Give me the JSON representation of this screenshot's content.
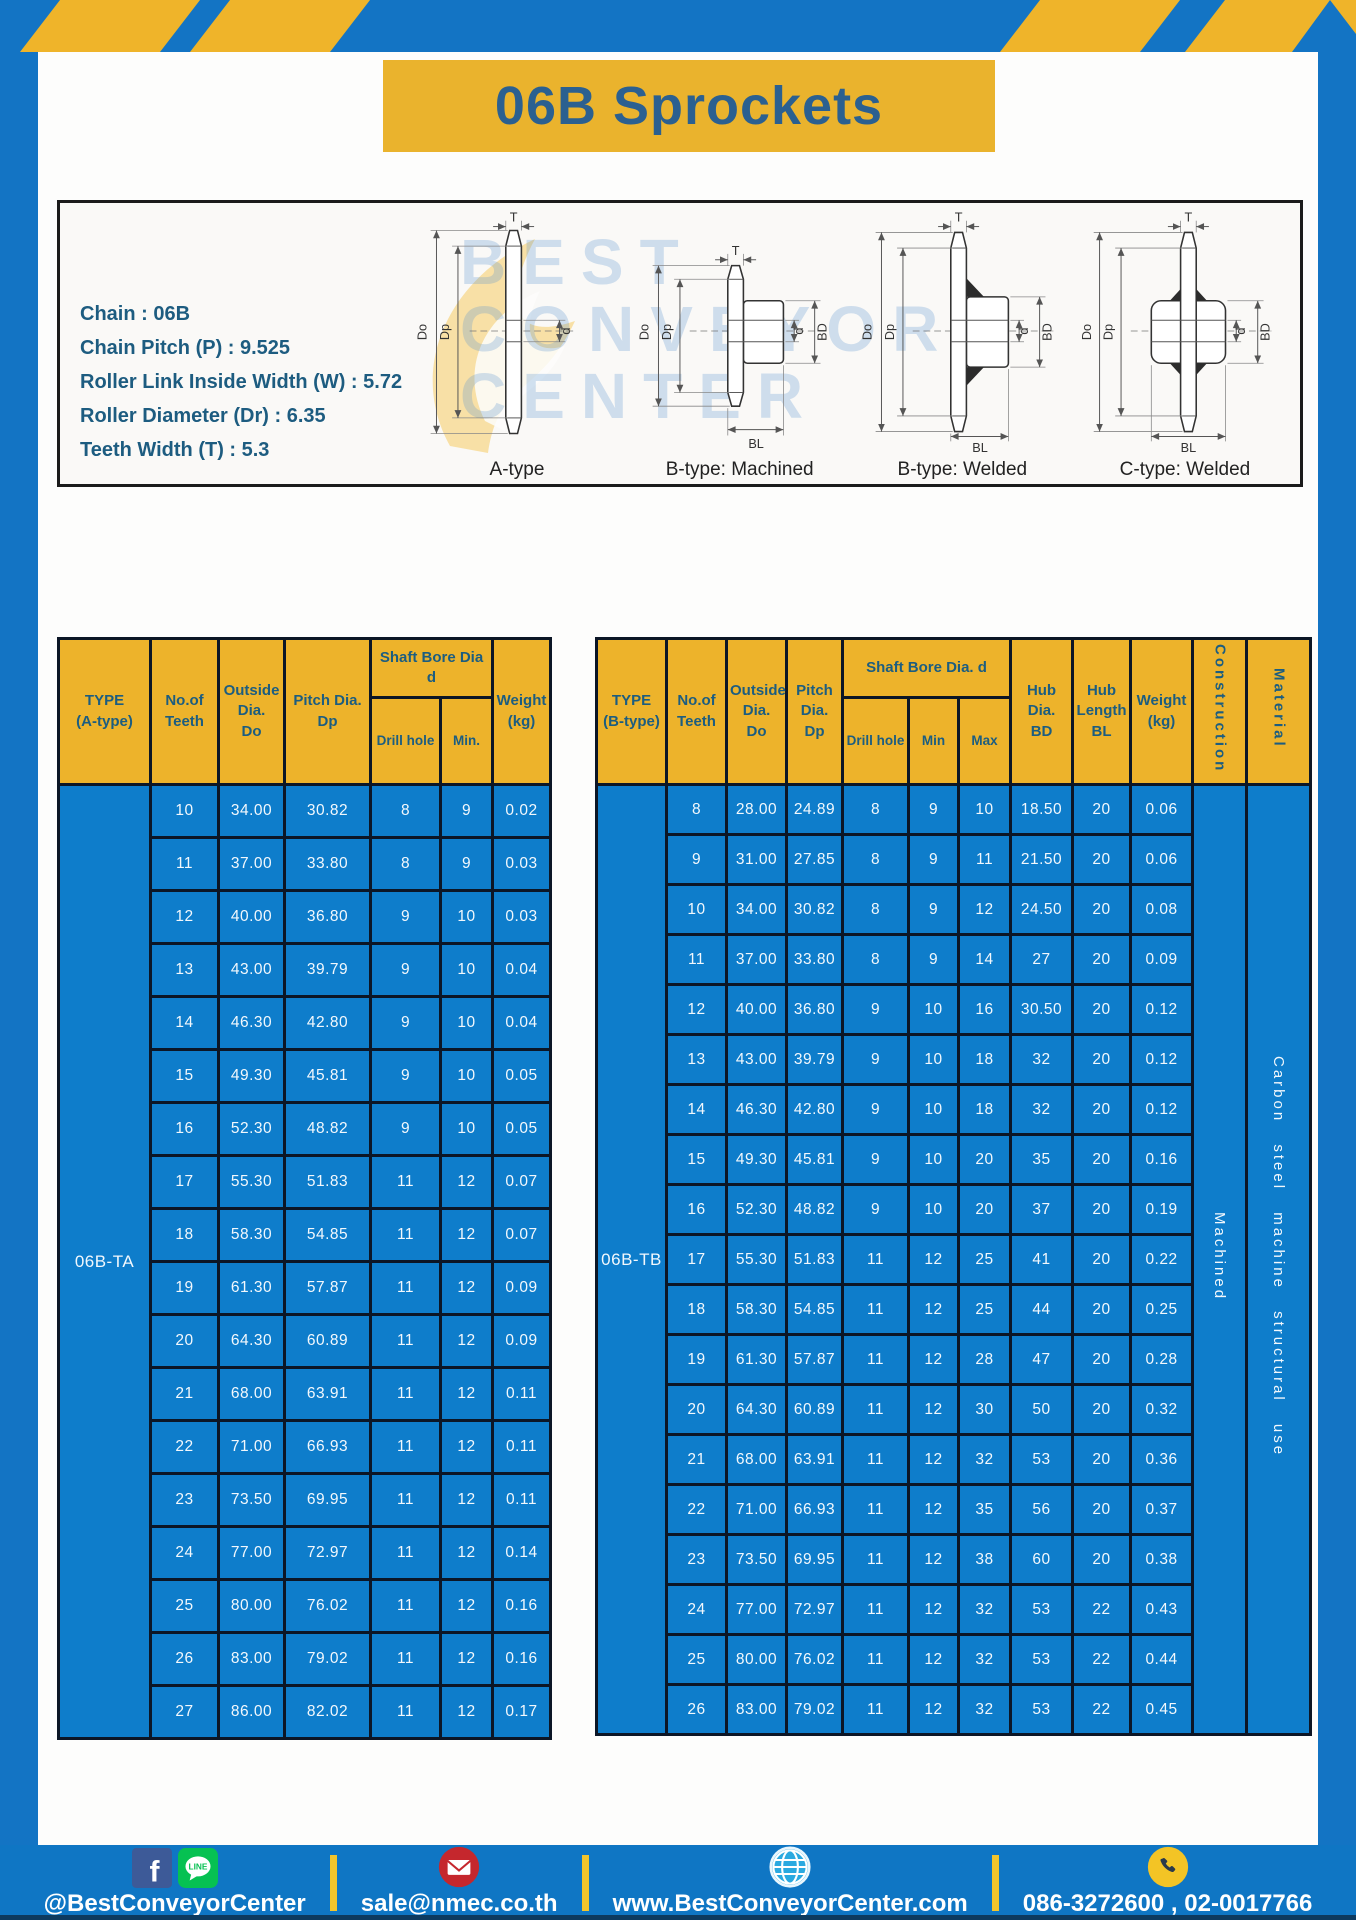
{
  "page": {
    "title": "06B Sprockets"
  },
  "specs": {
    "lines": [
      "Chain  : 06B",
      "Chain Pitch (P)  :  9.525",
      "Roller Link Inside Width (W)  :  5.72",
      "Roller Diameter (Dr)  : 6.35",
      "Teeth Width (T)  :  5.3"
    ]
  },
  "watermark": {
    "lines": [
      "BEST",
      "CONVEYOR",
      "CENTER"
    ]
  },
  "diagrams": {
    "captions": [
      "A-type",
      "B-type: Machined",
      "B-type: Welded",
      "C-type: Welded"
    ],
    "dim_labels": {
      "t": "T",
      "do": "Do",
      "dp": "Dp",
      "d": "d",
      "bd": "BD",
      "bl": "BL"
    }
  },
  "table_a": {
    "headers": {
      "type": "TYPE\n(A-type)",
      "teeth": "No.of\nTeeth",
      "outside": "Outside\nDia.\nDo",
      "pitch": "Pitch Dia.\nDp",
      "shaft_bore": "Shaft Bore Dia d",
      "drill": "Drill hole",
      "min": "Min.",
      "weight": "Weight\n(kg)"
    },
    "type_label": "06B-TA",
    "rows": [
      [
        "10",
        "34.00",
        "30.82",
        "8",
        "9",
        "0.02"
      ],
      [
        "11",
        "37.00",
        "33.80",
        "8",
        "9",
        "0.03"
      ],
      [
        "12",
        "40.00",
        "36.80",
        "9",
        "10",
        "0.03"
      ],
      [
        "13",
        "43.00",
        "39.79",
        "9",
        "10",
        "0.04"
      ],
      [
        "14",
        "46.30",
        "42.80",
        "9",
        "10",
        "0.04"
      ],
      [
        "15",
        "49.30",
        "45.81",
        "9",
        "10",
        "0.05"
      ],
      [
        "16",
        "52.30",
        "48.82",
        "9",
        "10",
        "0.05"
      ],
      [
        "17",
        "55.30",
        "51.83",
        "11",
        "12",
        "0.07"
      ],
      [
        "18",
        "58.30",
        "54.85",
        "11",
        "12",
        "0.07"
      ],
      [
        "19",
        "61.30",
        "57.87",
        "11",
        "12",
        "0.09"
      ],
      [
        "20",
        "64.30",
        "60.89",
        "11",
        "12",
        "0.09"
      ],
      [
        "21",
        "68.00",
        "63.91",
        "11",
        "12",
        "0.11"
      ],
      [
        "22",
        "71.00",
        "66.93",
        "11",
        "12",
        "0.11"
      ],
      [
        "23",
        "73.50",
        "69.95",
        "11",
        "12",
        "0.11"
      ],
      [
        "24",
        "77.00",
        "72.97",
        "11",
        "12",
        "0.14"
      ],
      [
        "25",
        "80.00",
        "76.02",
        "11",
        "12",
        "0.16"
      ],
      [
        "26",
        "83.00",
        "79.02",
        "11",
        "12",
        "0.16"
      ],
      [
        "27",
        "86.00",
        "82.02",
        "11",
        "12",
        "0.17"
      ]
    ]
  },
  "table_b": {
    "headers": {
      "type": "TYPE\n(B-type)",
      "teeth": "No.of\nTeeth",
      "outside": "Outside\nDia.\nDo",
      "pitch": "Pitch\nDia.\nDp",
      "shaft_bore": "Shaft Bore Dia.  d",
      "drill": "Drill hole",
      "min": "Min",
      "max": "Max",
      "hub_dia": "Hub\nDia.\nBD",
      "hub_len": "Hub\nLength\nBL",
      "weight": "Weight\n(kg)",
      "construction": "Construction",
      "material": "Material"
    },
    "type_label": "06B-TB",
    "construction_value": "Machined",
    "material_value": "Carbon steel machine structural use",
    "rows": [
      [
        "8",
        "28.00",
        "24.89",
        "8",
        "9",
        "10",
        "18.50",
        "20",
        "0.06"
      ],
      [
        "9",
        "31.00",
        "27.85",
        "8",
        "9",
        "11",
        "21.50",
        "20",
        "0.06"
      ],
      [
        "10",
        "34.00",
        "30.82",
        "8",
        "9",
        "12",
        "24.50",
        "20",
        "0.08"
      ],
      [
        "11",
        "37.00",
        "33.80",
        "8",
        "9",
        "14",
        "27",
        "20",
        "0.09"
      ],
      [
        "12",
        "40.00",
        "36.80",
        "9",
        "10",
        "16",
        "30.50",
        "20",
        "0.12"
      ],
      [
        "13",
        "43.00",
        "39.79",
        "9",
        "10",
        "18",
        "32",
        "20",
        "0.12"
      ],
      [
        "14",
        "46.30",
        "42.80",
        "9",
        "10",
        "18",
        "32",
        "20",
        "0.12"
      ],
      [
        "15",
        "49.30",
        "45.81",
        "9",
        "10",
        "20",
        "35",
        "20",
        "0.16"
      ],
      [
        "16",
        "52.30",
        "48.82",
        "9",
        "10",
        "20",
        "37",
        "20",
        "0.19"
      ],
      [
        "17",
        "55.30",
        "51.83",
        "11",
        "12",
        "25",
        "41",
        "20",
        "0.22"
      ],
      [
        "18",
        "58.30",
        "54.85",
        "11",
        "12",
        "25",
        "44",
        "20",
        "0.25"
      ],
      [
        "19",
        "61.30",
        "57.87",
        "11",
        "12",
        "28",
        "47",
        "20",
        "0.28"
      ],
      [
        "20",
        "64.30",
        "60.89",
        "11",
        "12",
        "30",
        "50",
        "20",
        "0.32"
      ],
      [
        "21",
        "68.00",
        "63.91",
        "11",
        "12",
        "32",
        "53",
        "20",
        "0.36"
      ],
      [
        "22",
        "71.00",
        "66.93",
        "11",
        "12",
        "35",
        "56",
        "20",
        "0.37"
      ],
      [
        "23",
        "73.50",
        "69.95",
        "11",
        "12",
        "38",
        "60",
        "20",
        "0.38"
      ],
      [
        "24",
        "77.00",
        "72.97",
        "11",
        "12",
        "32",
        "53",
        "22",
        "0.43"
      ],
      [
        "25",
        "80.00",
        "76.02",
        "11",
        "12",
        "32",
        "53",
        "22",
        "0.44"
      ],
      [
        "26",
        "83.00",
        "79.02",
        "11",
        "12",
        "32",
        "53",
        "22",
        "0.45"
      ]
    ]
  },
  "footer": {
    "social": "@BestConveyorCenter",
    "email": "sale@nmec.co.th",
    "website": "www.BestConveyorCenter.com",
    "phone": "086-3272600 , 02-0017766"
  },
  "colors": {
    "frame_blue": "#1374c4",
    "cell_blue": "#0e7dcb",
    "accent_yellow": "#eab32d",
    "border_dark": "#0c1626",
    "header_text": "#1c5d80"
  }
}
